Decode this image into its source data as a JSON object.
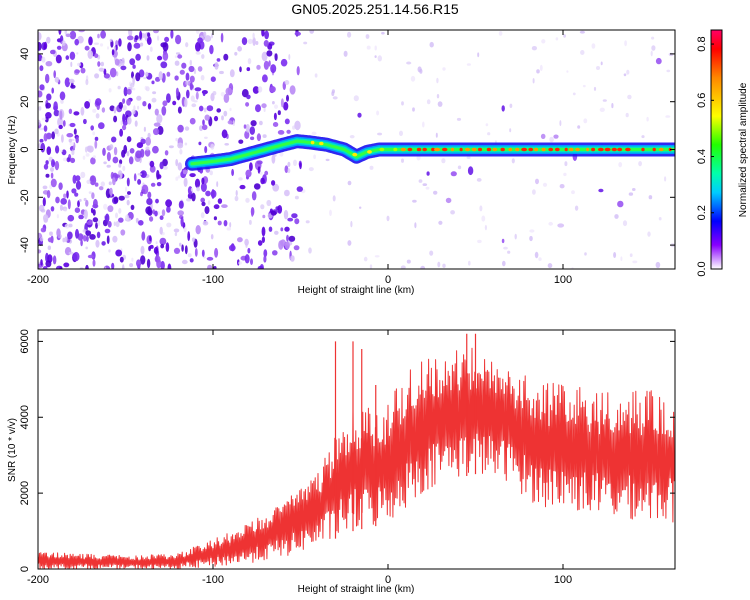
{
  "title": "GN05.2025.251.14.56.R15",
  "chart_data": [
    {
      "type": "heatmap",
      "name": "spectrogram",
      "xlabel": "Height of straight line (km)",
      "ylabel": "Frequency (Hz)",
      "xlim": [
        -200,
        164
      ],
      "ylim": [
        -50,
        50
      ],
      "xticks": [
        -200,
        -100,
        0,
        100
      ],
      "yticks": [
        -40,
        -20,
        0,
        20,
        40
      ],
      "ridge": {
        "description": "high-amplitude carrier line",
        "x": [
          -112,
          -100,
          -90,
          -80,
          -70,
          -60,
          -52,
          -45,
          -35,
          -25,
          -18,
          -12,
          -5,
          0,
          50,
          100,
          164
        ],
        "frequency": [
          -6,
          -5,
          -4,
          -2,
          0,
          2,
          3.5,
          3,
          2,
          0,
          -3,
          -1,
          0,
          0,
          0,
          0,
          0
        ]
      },
      "colorbar": {
        "label": "Normalized spectral amplitude",
        "range": [
          0.0,
          0.85
        ],
        "ticks": [
          "0.0",
          "0.2",
          "0.4",
          "0.6",
          "0.8"
        ]
      }
    },
    {
      "type": "line",
      "name": "snr",
      "xlabel": "Height of straight line (km)",
      "ylabel": "SNR (10 * v/v)",
      "xlim": [
        -200,
        164
      ],
      "ylim": [
        0,
        6300
      ],
      "xticks": [
        -200,
        -100,
        0,
        100
      ],
      "yticks": [
        0,
        2000,
        4000,
        6000
      ],
      "color": "#ee3333",
      "envelope": {
        "x": [
          -200,
          -150,
          -120,
          -100,
          -80,
          -60,
          -40,
          -30,
          -20,
          -10,
          0,
          10,
          20,
          30,
          40,
          50,
          60,
          70,
          80,
          90,
          100,
          110,
          120,
          130,
          140,
          150,
          164
        ],
        "upper": [
          450,
          350,
          400,
          800,
          1200,
          1800,
          2600,
          3500,
          4200,
          4300,
          4400,
          5200,
          5500,
          5600,
          5800,
          5900,
          5600,
          5400,
          5100,
          4900,
          4900,
          4800,
          4700,
          4600,
          4700,
          4700,
          4600
        ],
        "lower": [
          0,
          0,
          0,
          50,
          150,
          300,
          600,
          800,
          1000,
          1100,
          1200,
          1600,
          2000,
          2300,
          2400,
          2500,
          2400,
          2300,
          1800,
          1600,
          1600,
          1500,
          1400,
          1300,
          1300,
          1300,
          1200
        ]
      },
      "spikes": [
        {
          "x": -30,
          "y": 6000
        },
        {
          "x": -20,
          "y": 6000
        },
        {
          "x": -15,
          "y": 5800
        },
        {
          "x": -7,
          "y": 4850
        },
        {
          "x": 45,
          "y": 6200
        },
        {
          "x": 50,
          "y": 6200
        }
      ]
    }
  ]
}
